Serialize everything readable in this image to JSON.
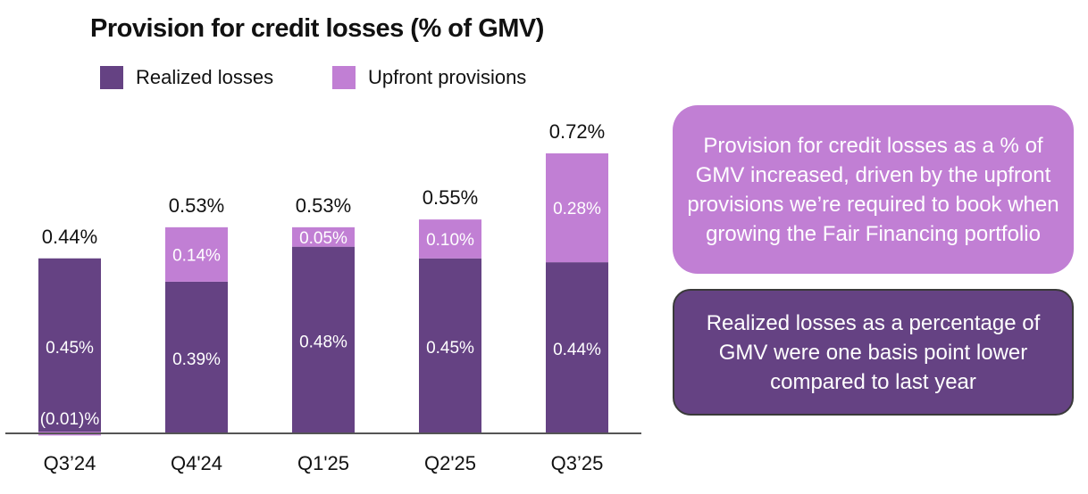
{
  "chart_data": {
    "type": "stacked-bar",
    "title": "Provision for credit losses (% of GMV)",
    "categories": [
      "Q3’24",
      "Q4'24",
      "Q1'25",
      "Q2'25",
      "Q3’25"
    ],
    "series": [
      {
        "name": "Realized losses",
        "color": "#654283",
        "values": [
          0.45,
          0.39,
          0.48,
          0.45,
          0.44
        ],
        "labels": [
          "0.45%",
          "0.39%",
          "0.48%",
          "0.45%",
          "0.44%"
        ]
      },
      {
        "name": "Upfront provisions",
        "color": "#c17fd4",
        "values": [
          -0.01,
          0.14,
          0.05,
          0.1,
          0.28
        ],
        "labels": [
          "(0.01)%",
          "0.14%",
          "0.05%",
          "0.10%",
          "0.28%"
        ]
      }
    ],
    "totals": [
      0.44,
      0.53,
      0.53,
      0.55,
      0.72
    ],
    "total_labels": [
      "0.44%",
      "0.53%",
      "0.53%",
      "0.55%",
      "0.72%"
    ],
    "ylim": [
      0,
      0.72
    ],
    "xlabel": "",
    "ylabel": "",
    "grid": false,
    "legend_position": "top-left"
  },
  "legend": [
    {
      "label": "Realized losses",
      "color": "#654283"
    },
    {
      "label": "Upfront provisions",
      "color": "#c17fd4"
    }
  ],
  "callouts": {
    "top": "Provision for credit losses as a % of GMV increased, driven by the upfront provisions we’re required to book when growing the Fair Financing portfolio",
    "bottom": "Realized losses as a percentage of GMV were one basis point lower compared to last year"
  }
}
